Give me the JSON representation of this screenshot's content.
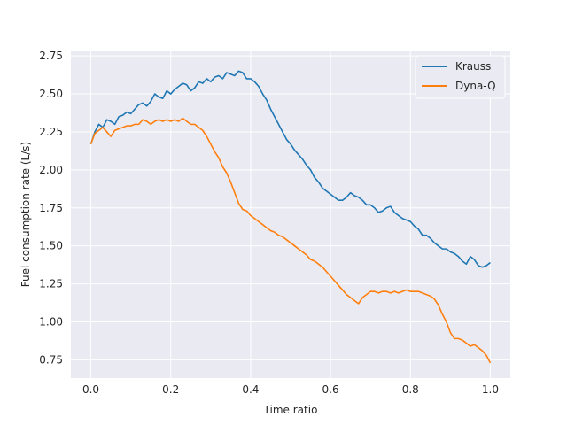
{
  "chart_data": {
    "type": "line",
    "title": "",
    "xlabel": "Time ratio",
    "ylabel": "Fuel consumption rate (L/s)",
    "xlim": [
      -0.05,
      1.05
    ],
    "ylim": [
      0.63,
      2.78
    ],
    "xticks": [
      0.0,
      0.2,
      0.4,
      0.6,
      0.8,
      1.0
    ],
    "xtick_labels": [
      "0.0",
      "0.2",
      "0.4",
      "0.6",
      "0.8",
      "1.0"
    ],
    "yticks": [
      0.75,
      1.0,
      1.25,
      1.5,
      1.75,
      2.0,
      2.25,
      2.5,
      2.75
    ],
    "ytick_labels": [
      "0.75",
      "1.00",
      "1.25",
      "1.50",
      "1.75",
      "2.00",
      "2.25",
      "2.50",
      "2.75"
    ],
    "grid": true,
    "background": "#eaeaf2",
    "legend_position": "upper right",
    "series": [
      {
        "name": "Krauss",
        "color": "#1f77b4",
        "x": [
          0.0,
          0.01,
          0.02,
          0.03,
          0.04,
          0.05,
          0.06,
          0.07,
          0.08,
          0.09,
          0.1,
          0.11,
          0.12,
          0.13,
          0.14,
          0.15,
          0.16,
          0.17,
          0.18,
          0.19,
          0.2,
          0.21,
          0.22,
          0.23,
          0.24,
          0.25,
          0.26,
          0.27,
          0.28,
          0.29,
          0.3,
          0.31,
          0.32,
          0.33,
          0.34,
          0.35,
          0.36,
          0.37,
          0.38,
          0.39,
          0.4,
          0.41,
          0.42,
          0.43,
          0.44,
          0.45,
          0.46,
          0.47,
          0.48,
          0.49,
          0.5,
          0.51,
          0.52,
          0.53,
          0.54,
          0.55,
          0.56,
          0.57,
          0.58,
          0.59,
          0.6,
          0.61,
          0.62,
          0.63,
          0.64,
          0.65,
          0.66,
          0.67,
          0.68,
          0.69,
          0.7,
          0.71,
          0.72,
          0.73,
          0.74,
          0.75,
          0.76,
          0.77,
          0.78,
          0.79,
          0.8,
          0.81,
          0.82,
          0.83,
          0.84,
          0.85,
          0.86,
          0.87,
          0.88,
          0.89,
          0.9,
          0.91,
          0.92,
          0.93,
          0.94,
          0.95,
          0.96,
          0.97,
          0.98,
          0.99,
          1.0
        ],
        "y": [
          2.17,
          2.25,
          2.3,
          2.28,
          2.33,
          2.32,
          2.3,
          2.35,
          2.36,
          2.38,
          2.37,
          2.4,
          2.43,
          2.44,
          2.42,
          2.45,
          2.5,
          2.48,
          2.47,
          2.52,
          2.5,
          2.53,
          2.55,
          2.57,
          2.56,
          2.52,
          2.54,
          2.58,
          2.57,
          2.6,
          2.58,
          2.61,
          2.62,
          2.6,
          2.64,
          2.63,
          2.62,
          2.65,
          2.64,
          2.6,
          2.6,
          2.58,
          2.55,
          2.5,
          2.46,
          2.4,
          2.35,
          2.3,
          2.25,
          2.2,
          2.17,
          2.13,
          2.1,
          2.07,
          2.03,
          2.0,
          1.95,
          1.92,
          1.88,
          1.86,
          1.84,
          1.82,
          1.8,
          1.8,
          1.82,
          1.85,
          1.83,
          1.82,
          1.8,
          1.77,
          1.77,
          1.75,
          1.72,
          1.73,
          1.75,
          1.76,
          1.72,
          1.7,
          1.68,
          1.67,
          1.66,
          1.63,
          1.61,
          1.57,
          1.57,
          1.55,
          1.52,
          1.5,
          1.48,
          1.48,
          1.46,
          1.45,
          1.43,
          1.4,
          1.38,
          1.43,
          1.41,
          1.37,
          1.36,
          1.37,
          1.39
        ]
      },
      {
        "name": "Dyna-Q",
        "color": "#ff7f0e",
        "x": [
          0.0,
          0.01,
          0.02,
          0.03,
          0.04,
          0.05,
          0.06,
          0.07,
          0.08,
          0.09,
          0.1,
          0.11,
          0.12,
          0.13,
          0.14,
          0.15,
          0.16,
          0.17,
          0.18,
          0.19,
          0.2,
          0.21,
          0.22,
          0.23,
          0.24,
          0.25,
          0.26,
          0.27,
          0.28,
          0.29,
          0.3,
          0.31,
          0.32,
          0.33,
          0.34,
          0.35,
          0.36,
          0.37,
          0.38,
          0.39,
          0.4,
          0.41,
          0.42,
          0.43,
          0.44,
          0.45,
          0.46,
          0.47,
          0.48,
          0.49,
          0.5,
          0.51,
          0.52,
          0.53,
          0.54,
          0.55,
          0.56,
          0.57,
          0.58,
          0.59,
          0.6,
          0.61,
          0.62,
          0.63,
          0.64,
          0.65,
          0.66,
          0.67,
          0.68,
          0.69,
          0.7,
          0.71,
          0.72,
          0.73,
          0.74,
          0.75,
          0.76,
          0.77,
          0.78,
          0.79,
          0.8,
          0.81,
          0.82,
          0.83,
          0.84,
          0.85,
          0.86,
          0.87,
          0.88,
          0.89,
          0.9,
          0.91,
          0.92,
          0.93,
          0.94,
          0.95,
          0.96,
          0.97,
          0.98,
          0.99,
          1.0
        ],
        "y": [
          2.17,
          2.24,
          2.26,
          2.28,
          2.25,
          2.22,
          2.26,
          2.27,
          2.28,
          2.29,
          2.29,
          2.3,
          2.3,
          2.33,
          2.32,
          2.3,
          2.32,
          2.33,
          2.32,
          2.33,
          2.32,
          2.33,
          2.32,
          2.34,
          2.32,
          2.3,
          2.3,
          2.28,
          2.26,
          2.22,
          2.17,
          2.12,
          2.08,
          2.02,
          1.98,
          1.92,
          1.85,
          1.78,
          1.74,
          1.73,
          1.7,
          1.68,
          1.66,
          1.64,
          1.62,
          1.6,
          1.59,
          1.57,
          1.56,
          1.54,
          1.52,
          1.5,
          1.48,
          1.46,
          1.44,
          1.41,
          1.4,
          1.38,
          1.36,
          1.33,
          1.3,
          1.27,
          1.24,
          1.21,
          1.18,
          1.16,
          1.14,
          1.12,
          1.16,
          1.18,
          1.2,
          1.2,
          1.19,
          1.2,
          1.2,
          1.19,
          1.2,
          1.19,
          1.2,
          1.21,
          1.2,
          1.2,
          1.2,
          1.19,
          1.18,
          1.17,
          1.15,
          1.11,
          1.05,
          1.0,
          0.93,
          0.89,
          0.89,
          0.88,
          0.86,
          0.84,
          0.85,
          0.83,
          0.81,
          0.78,
          0.73
        ]
      }
    ]
  }
}
